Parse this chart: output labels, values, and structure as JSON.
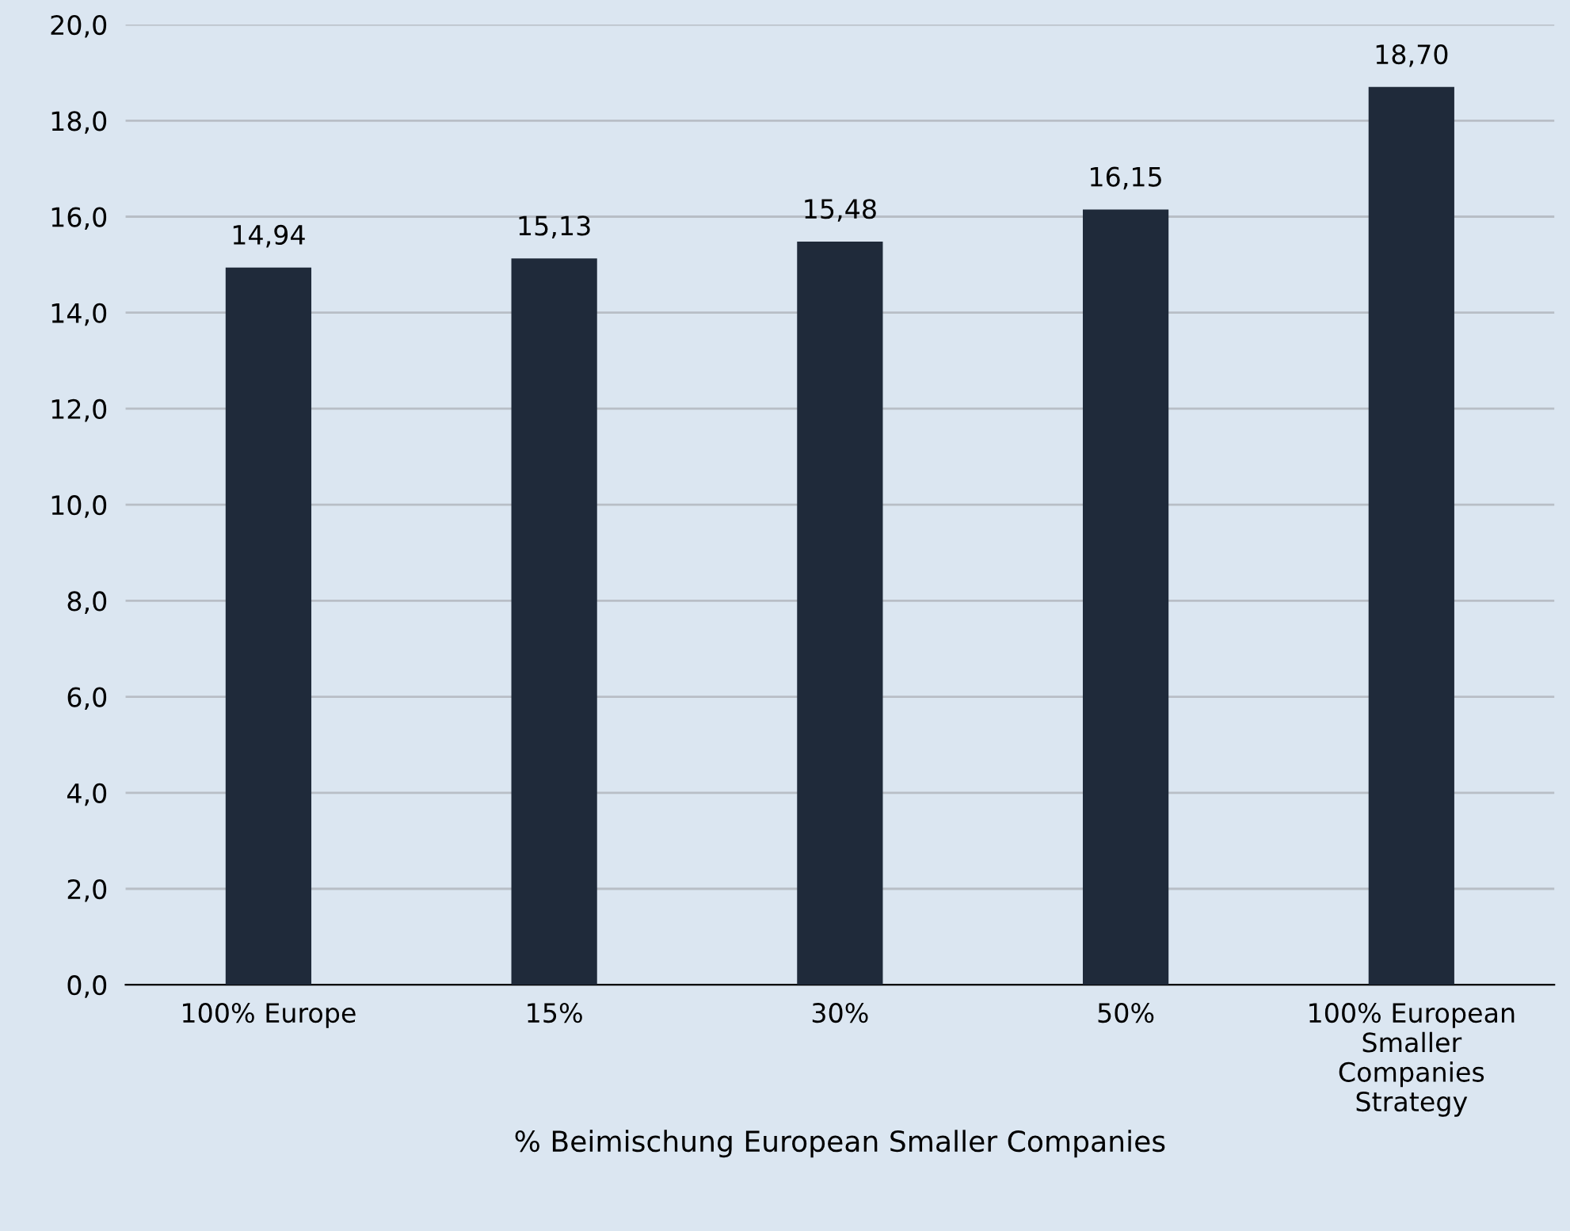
{
  "chart_data": {
    "type": "bar",
    "xlabel": "% Beimischung European Smaller Companies",
    "categories": [
      "100% Europe",
      "15%",
      "30%",
      "50%",
      "100% European Smaller Companies Strategy"
    ],
    "values": [
      14.94,
      15.13,
      15.48,
      16.15,
      18.7
    ],
    "value_labels": [
      "14,94",
      "15,13",
      "15,48",
      "16,15",
      "18,70"
    ],
    "color": "#1f2a3a",
    "ylim": [
      0,
      20
    ],
    "yticks": [
      {
        "value": 0,
        "label": "0,0"
      },
      {
        "value": 2,
        "label": "2,0"
      },
      {
        "value": 4,
        "label": "4,0"
      },
      {
        "value": 6,
        "label": "6,0"
      },
      {
        "value": 8,
        "label": "8,0"
      },
      {
        "value": 10,
        "label": "10,0"
      },
      {
        "value": 12,
        "label": "12,0"
      },
      {
        "value": 14,
        "label": "14,0"
      },
      {
        "value": 16,
        "label": "16,0"
      },
      {
        "value": 18,
        "label": "18,0"
      },
      {
        "value": 20,
        "label": "20,0"
      }
    ],
    "grid": "y",
    "legend": false
  }
}
